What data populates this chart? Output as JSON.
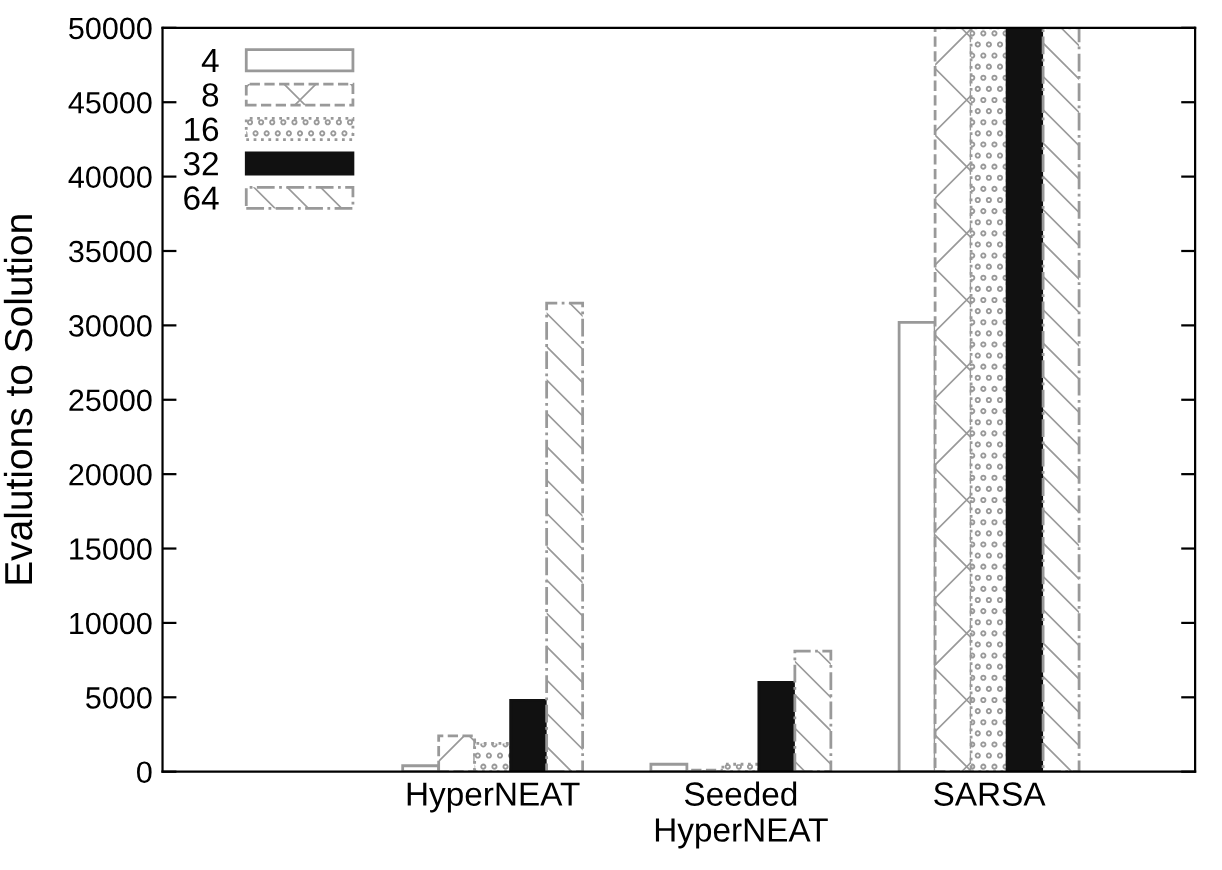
{
  "chart_data": {
    "type": "bar",
    "ylabel": "Evalutions to Solution",
    "categories": [
      "HyperNEAT",
      "Seeded\nHyperNEAT",
      "SARSA"
    ],
    "series": [
      {
        "name": "4",
        "color": "#ffffff",
        "values": [
          400,
          500,
          30200
        ]
      },
      {
        "name": "8",
        "color": "#999999",
        "values": [
          2400,
          100,
          50000
        ]
      },
      {
        "name": "16",
        "color": "#999999",
        "values": [
          1900,
          500,
          50000
        ]
      },
      {
        "name": "32",
        "color": "#111111",
        "values": [
          4800,
          6000,
          50000
        ]
      },
      {
        "name": "64",
        "color": "#999999",
        "values": [
          31500,
          8100,
          50000
        ]
      }
    ],
    "ylim": [
      0,
      50000
    ],
    "yticks": [
      0,
      5000,
      10000,
      15000,
      20000,
      25000,
      30000,
      35000,
      40000,
      45000,
      50000
    ],
    "grid": false,
    "legend": "top left"
  }
}
